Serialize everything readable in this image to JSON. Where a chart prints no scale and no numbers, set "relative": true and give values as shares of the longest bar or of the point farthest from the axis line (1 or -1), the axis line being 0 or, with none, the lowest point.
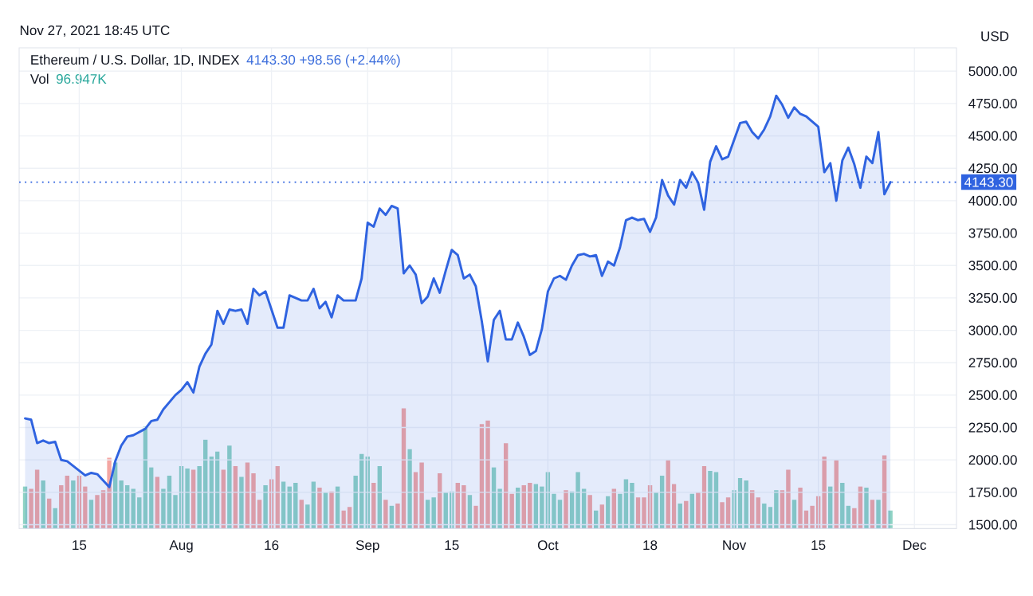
{
  "chart_data": [
    {
      "type": "area",
      "title": "Ethereum / U.S. Dollar, 1D, INDEX",
      "subtitle": "4143.30 +98.56 (+2.44%)",
      "ylabel": "USD",
      "annotations": [
        "Nov 27, 2021 18:45 UTC"
      ],
      "x": [
        "2021-07-06",
        "2021-07-07",
        "2021-07-08",
        "2021-07-09",
        "2021-07-10",
        "2021-07-11",
        "2021-07-12",
        "2021-07-13",
        "2021-07-16",
        "2021-07-17",
        "2021-07-18",
        "2021-07-19",
        "2021-07-20",
        "2021-07-21",
        "2021-07-22",
        "2021-07-23",
        "2021-07-24",
        "2021-07-26",
        "2021-07-27",
        "2021-07-28",
        "2021-07-29",
        "2021-07-31",
        "2021-08-01",
        "2021-08-02",
        "2021-08-03",
        "2021-08-04",
        "2021-08-05",
        "2021-08-06",
        "2021-08-07",
        "2021-08-08",
        "2021-08-09",
        "2021-08-10",
        "2021-08-11",
        "2021-08-12",
        "2021-08-13",
        "2021-08-14",
        "2021-08-15",
        "2021-08-17",
        "2021-08-18",
        "2021-08-19",
        "2021-08-21",
        "2021-08-22",
        "2021-08-23",
        "2021-08-24",
        "2021-08-25",
        "2021-08-26",
        "2021-08-27",
        "2021-08-28",
        "2021-08-30",
        "2021-08-31",
        "2021-09-01",
        "2021-09-02",
        "2021-09-03",
        "2021-09-04",
        "2021-09-05",
        "2021-09-06",
        "2021-09-07",
        "2021-09-08",
        "2021-09-09",
        "2021-09-10",
        "2021-09-11",
        "2021-09-12",
        "2021-09-13",
        "2021-09-14",
        "2021-09-15",
        "2021-09-16",
        "2021-09-17",
        "2021-09-18",
        "2021-09-19",
        "2021-09-20",
        "2021-09-21",
        "2021-09-22",
        "2021-09-23",
        "2021-09-24",
        "2021-09-25",
        "2021-09-26",
        "2021-09-27",
        "2021-09-28",
        "2021-09-29",
        "2021-09-30",
        "2021-10-01",
        "2021-10-02",
        "2021-10-03",
        "2021-10-04",
        "2021-10-05",
        "2021-10-06",
        "2021-10-07",
        "2021-10-08",
        "2021-10-09",
        "2021-10-10",
        "2021-10-11",
        "2021-10-12",
        "2021-10-13",
        "2021-10-14",
        "2021-10-15",
        "2021-10-16",
        "2021-10-17",
        "2021-10-18",
        "2021-10-19",
        "2021-10-20",
        "2021-10-21",
        "2021-10-22",
        "2021-10-23",
        "2021-10-24",
        "2021-10-25",
        "2021-10-26",
        "2021-10-27",
        "2021-10-28",
        "2021-10-29",
        "2021-10-30",
        "2021-10-31",
        "2021-11-02",
        "2021-11-03",
        "2021-11-04",
        "2021-11-05",
        "2021-11-06",
        "2021-11-07",
        "2021-11-08",
        "2021-11-09",
        "2021-11-10",
        "2021-11-11",
        "2021-11-12",
        "2021-11-13",
        "2021-11-14",
        "2021-11-15",
        "2021-11-16",
        "2021-11-17",
        "2021-11-18",
        "2021-11-19",
        "2021-11-20",
        "2021-11-21",
        "2021-11-22",
        "2021-11-23",
        "2021-11-24",
        "2021-11-25",
        "2021-11-26",
        "2021-11-27"
      ],
      "series": [
        {
          "color": "#2f63e0",
          "values": [
            2320,
            2310,
            2130,
            2150,
            2130,
            2140,
            2000,
            1990,
            1880,
            1900,
            1890,
            1840,
            1790,
            1990,
            2110,
            2180,
            2190,
            2240,
            2300,
            2310,
            2390,
            2500,
            2540,
            2600,
            2520,
            2720,
            2820,
            2890,
            3150,
            3050,
            3160,
            3150,
            3160,
            3050,
            3320,
            3270,
            3300,
            3020,
            3020,
            3270,
            3230,
            3230,
            3320,
            3170,
            3220,
            3100,
            3270,
            3230,
            3230,
            3400,
            3830,
            3800,
            3940,
            3890,
            3960,
            3940,
            3440,
            3500,
            3430,
            3210,
            3260,
            3400,
            3290,
            3460,
            3620,
            3580,
            3400,
            3430,
            3340,
            3070,
            2760,
            3080,
            3150,
            2930,
            2930,
            3060,
            2950,
            2810,
            2840,
            3010,
            3300,
            3400,
            3420,
            3390,
            3500,
            3580,
            3590,
            3570,
            3580,
            3420,
            3530,
            3500,
            3640,
            3850,
            3870,
            3850,
            3860,
            3760,
            3870,
            4160,
            4040,
            3970,
            4160,
            4100,
            4220,
            4140,
            3930,
            4300,
            4420,
            4320,
            4340,
            4600,
            4610,
            4530,
            4480,
            4550,
            4650,
            4810,
            4740,
            4640,
            4720,
            4670,
            4650,
            4610,
            4570,
            4220,
            4290,
            4000,
            4310,
            4410,
            4280,
            4100,
            4340,
            4290,
            4530,
            4050,
            4143.3
          ]
        }
      ],
      "xlim": [
        "2021-07-05",
        "2021-12-08"
      ],
      "ylim": [
        1470,
        5180
      ],
      "xticks": [
        {
          "value": "2021-07-15",
          "label": "15"
        },
        {
          "value": "2021-08-01",
          "label": "Aug"
        },
        {
          "value": "2021-08-16",
          "label": "16"
        },
        {
          "value": "2021-09-01",
          "label": "Sep"
        },
        {
          "value": "2021-09-15",
          "label": "15"
        },
        {
          "value": "2021-10-01",
          "label": "Oct"
        },
        {
          "value": "2021-10-18",
          "label": "18"
        },
        {
          "value": "2021-11-01",
          "label": "Nov"
        },
        {
          "value": "2021-11-15",
          "label": "15"
        },
        {
          "value": "2021-12-01",
          "label": "Dec"
        }
      ],
      "yticks": [
        {
          "value": 1500,
          "label": "1500.00"
        },
        {
          "value": 1750,
          "label": "1750.00"
        },
        {
          "value": 2000,
          "label": "2000.00"
        },
        {
          "value": 2250,
          "label": "2250.00"
        },
        {
          "value": 2500,
          "label": "2500.00"
        },
        {
          "value": 2750,
          "label": "2750.00"
        },
        {
          "value": 3000,
          "label": "3000.00"
        },
        {
          "value": 3250,
          "label": "3250.00"
        },
        {
          "value": 3500,
          "label": "3500.00"
        },
        {
          "value": 3750,
          "label": "3750.00"
        },
        {
          "value": 4000,
          "label": "4000.00"
        },
        {
          "value": 4250,
          "label": "4250.00"
        },
        {
          "value": 4500,
          "label": "4500.00"
        },
        {
          "value": 4750,
          "label": "4750.00"
        },
        {
          "value": 5000,
          "label": "5000.00"
        }
      ],
      "ref_lines": [
        {
          "axis": "y",
          "value": 4143.3,
          "label": "4143.30",
          "color": "#2f63e0",
          "line_style": "dotted"
        }
      ],
      "grid": true
    },
    {
      "type": "bar",
      "title": "Vol",
      "annotations": [
        "96.947K"
      ],
      "relative": true,
      "xlim": [
        "2021-07-05",
        "2021-12-08"
      ],
      "x": [
        "2021-07-06",
        "2021-07-07",
        "2021-07-08",
        "2021-07-09",
        "2021-07-10",
        "2021-07-11",
        "2021-07-12",
        "2021-07-13",
        "2021-07-14",
        "2021-07-15",
        "2021-07-16",
        "2021-07-17",
        "2021-07-18",
        "2021-07-19",
        "2021-07-20",
        "2021-07-21",
        "2021-07-22",
        "2021-07-23",
        "2021-07-24",
        "2021-07-25",
        "2021-07-26",
        "2021-07-27",
        "2021-07-28",
        "2021-07-29",
        "2021-07-30",
        "2021-07-31",
        "2021-08-01",
        "2021-08-02",
        "2021-08-03",
        "2021-08-04",
        "2021-08-05",
        "2021-08-06",
        "2021-08-07",
        "2021-08-08",
        "2021-08-09",
        "2021-08-10",
        "2021-08-11",
        "2021-08-12",
        "2021-08-13",
        "2021-08-14",
        "2021-08-15",
        "2021-08-16",
        "2021-08-17",
        "2021-08-18",
        "2021-08-19",
        "2021-08-20",
        "2021-08-21",
        "2021-08-22",
        "2021-08-23",
        "2021-08-24",
        "2021-08-25",
        "2021-08-26",
        "2021-08-27",
        "2021-08-28",
        "2021-08-29",
        "2021-08-30",
        "2021-08-31",
        "2021-09-01",
        "2021-09-02",
        "2021-09-03",
        "2021-09-04",
        "2021-09-05",
        "2021-09-06",
        "2021-09-07",
        "2021-09-08",
        "2021-09-09",
        "2021-09-10",
        "2021-09-11",
        "2021-09-12",
        "2021-09-13",
        "2021-09-14",
        "2021-09-15",
        "2021-09-16",
        "2021-09-17",
        "2021-09-18",
        "2021-09-19",
        "2021-09-20",
        "2021-09-21",
        "2021-09-22",
        "2021-09-23",
        "2021-09-24",
        "2021-09-25",
        "2021-09-26",
        "2021-09-27",
        "2021-09-28",
        "2021-09-29",
        "2021-09-30",
        "2021-10-01",
        "2021-10-02",
        "2021-10-03",
        "2021-10-04",
        "2021-10-05",
        "2021-10-06",
        "2021-10-07",
        "2021-10-08",
        "2021-10-09",
        "2021-10-10",
        "2021-10-11",
        "2021-10-12",
        "2021-10-13",
        "2021-10-14",
        "2021-10-15",
        "2021-10-16",
        "2021-10-17",
        "2021-10-18",
        "2021-10-19",
        "2021-10-20",
        "2021-10-21",
        "2021-10-22",
        "2021-10-23",
        "2021-10-24",
        "2021-10-25",
        "2021-10-26",
        "2021-10-27",
        "2021-10-28",
        "2021-10-29",
        "2021-10-30",
        "2021-10-31",
        "2021-11-01",
        "2021-11-02",
        "2021-11-03",
        "2021-11-04",
        "2021-11-05",
        "2021-11-06",
        "2021-11-07",
        "2021-11-08",
        "2021-11-09",
        "2021-11-10",
        "2021-11-11",
        "2021-11-12",
        "2021-11-13",
        "2021-11-14",
        "2021-11-15",
        "2021-11-16",
        "2021-11-17",
        "2021-11-18",
        "2021-11-19",
        "2021-11-20",
        "2021-11-21",
        "2021-11-22",
        "2021-11-23",
        "2021-11-24",
        "2021-11-25",
        "2021-11-26",
        "2021-11-27"
      ],
      "values": [
        0.35,
        0.33,
        0.49,
        0.4,
        0.25,
        0.17,
        0.36,
        0.44,
        0.4,
        0.44,
        0.35,
        0.24,
        0.28,
        0.32,
        0.59,
        0.55,
        0.4,
        0.36,
        0.33,
        0.26,
        0.85,
        0.51,
        0.43,
        0.33,
        0.44,
        0.28,
        0.52,
        0.5,
        0.49,
        0.52,
        0.74,
        0.6,
        0.64,
        0.49,
        0.69,
        0.52,
        0.43,
        0.55,
        0.46,
        0.24,
        0.36,
        0.41,
        0.52,
        0.39,
        0.35,
        0.38,
        0.24,
        0.2,
        0.39,
        0.34,
        0.3,
        0.31,
        0.35,
        0.15,
        0.18,
        0.44,
        0.62,
        0.6,
        0.38,
        0.52,
        0.24,
        0.19,
        0.21,
        1,
        0.66,
        0.47,
        0.55,
        0.24,
        0.26,
        0.46,
        0.3,
        0.31,
        0.38,
        0.36,
        0.28,
        0.19,
        0.87,
        0.9,
        0.51,
        0.33,
        0.71,
        0.29,
        0.34,
        0.36,
        0.38,
        0.37,
        0.35,
        0.47,
        0.29,
        0.24,
        0.32,
        0.31,
        0.47,
        0.33,
        0.28,
        0.15,
        0.2,
        0.27,
        0.33,
        0.29,
        0.41,
        0.38,
        0.26,
        0.26,
        0.36,
        0.3,
        0.44,
        0.57,
        0.37,
        0.21,
        0.23,
        0.29,
        0.3,
        0.52,
        0.48,
        0.47,
        0.22,
        0.26,
        0.32,
        0.42,
        0.4,
        0.32,
        0.26,
        0.21,
        0.18,
        0.32,
        0.32,
        0.49,
        0.24,
        0.34,
        0.15,
        0.19,
        0.27,
        0.6,
        0.35,
        0.57,
        0.38,
        0.19,
        0.17,
        0.35,
        0.34,
        0.24,
        0.24,
        0.61,
        0.15
      ],
      "colors": [
        "#8fd3c4",
        "#f4a6a3",
        "#f4a6a3",
        "#8fd3c4",
        "#f4a6a3",
        "#8fd3c4",
        "#f4a6a3",
        "#f4a6a3",
        "#8fd3c4",
        "#f4a6a3",
        "#f4a6a3",
        "#8fd3c4",
        "#f4a6a3",
        "#f4a6a3",
        "#f4a6a3",
        "#8fd3c4",
        "#8fd3c4",
        "#8fd3c4",
        "#8fd3c4",
        "#8fd3c4",
        "#8fd3c4",
        "#8fd3c4",
        "#f4a6a3",
        "#8fd3c4",
        "#8fd3c4",
        "#8fd3c4",
        "#8fd3c4",
        "#8fd3c4",
        "#f4a6a3",
        "#8fd3c4",
        "#8fd3c4",
        "#8fd3c4",
        "#8fd3c4",
        "#f4a6a3",
        "#8fd3c4",
        "#f4a6a3",
        "#8fd3c4",
        "#f4a6a3",
        "#f4a6a3",
        "#f4a6a3",
        "#8fd3c4",
        "#f4a6a3",
        "#f4a6a3",
        "#8fd3c4",
        "#8fd3c4",
        "#8fd3c4",
        "#f4a6a3",
        "#8fd3c4",
        "#8fd3c4",
        "#f4a6a3",
        "#8fd3c4",
        "#f4a6a3",
        "#8fd3c4",
        "#f4a6a3",
        "#f4a6a3",
        "#8fd3c4",
        "#8fd3c4",
        "#8fd3c4",
        "#f4a6a3",
        "#8fd3c4",
        "#f4a6a3",
        "#8fd3c4",
        "#f4a6a3",
        "#f4a6a3",
        "#8fd3c4",
        "#f4a6a3",
        "#f4a6a3",
        "#8fd3c4",
        "#8fd3c4",
        "#f4a6a3",
        "#8fd3c4",
        "#8fd3c4",
        "#f4a6a3",
        "#f4a6a3",
        "#8fd3c4",
        "#f4a6a3",
        "#f4a6a3",
        "#f4a6a3",
        "#8fd3c4",
        "#8fd3c4",
        "#f4a6a3",
        "#f4a6a3",
        "#8fd3c4",
        "#f4a6a3",
        "#f4a6a3",
        "#8fd3c4",
        "#8fd3c4",
        "#8fd3c4",
        "#8fd3c4",
        "#8fd3c4",
        "#f4a6a3",
        "#8fd3c4",
        "#8fd3c4",
        "#8fd3c4",
        "#f4a6a3",
        "#8fd3c4",
        "#f4a6a3",
        "#8fd3c4",
        "#f4a6a3",
        "#8fd3c4",
        "#8fd3c4",
        "#8fd3c4",
        "#f4a6a3",
        "#f4a6a3",
        "#f4a6a3",
        "#8fd3c4",
        "#8fd3c4",
        "#f4a6a3",
        "#f4a6a3",
        "#8fd3c4",
        "#f4a6a3",
        "#8fd3c4",
        "#f4a6a3",
        "#f4a6a3",
        "#8fd3c4",
        "#8fd3c4",
        "#f4a6a3",
        "#f4a6a3",
        "#8fd3c4",
        "#8fd3c4",
        "#8fd3c4",
        "#f4a6a3",
        "#f4a6a3",
        "#8fd3c4",
        "#8fd3c4",
        "#8fd3c4",
        "#f4a6a3",
        "#f4a6a3",
        "#8fd3c4",
        "#f4a6a3",
        "#f4a6a3",
        "#f4a6a3",
        "#f4a6a3",
        "#f4a6a3",
        "#8fd3c4",
        "#f4a6a3",
        "#8fd3c4",
        "#8fd3c4",
        "#f4a6a3",
        "#f4a6a3",
        "#8fd3c4",
        "#f4a6a3",
        "#8fd3c4",
        "#f4a6a3",
        "#8fd3c4"
      ]
    }
  ]
}
